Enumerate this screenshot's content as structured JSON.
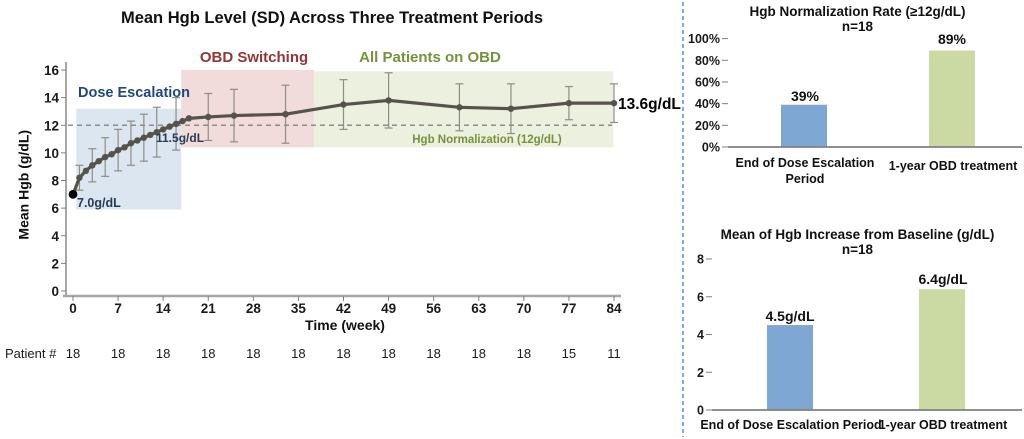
{
  "figure": {
    "background": "#ffffff",
    "divider_color": "#5b9bd5",
    "accent_colors": {
      "bar_blue": "#7ea7d4",
      "bar_green": "#cbdaa2",
      "line_gray": "#55534b"
    }
  },
  "chart_data": [
    {
      "id": "hgb-line-chart",
      "type": "line",
      "title": "Mean Hgb Level (SD) Across Three Treatment Periods",
      "xlabel": "Time (week)",
      "ylabel": "Mean Hgb (g/dL)",
      "xlim": [
        0,
        84
      ],
      "ylim": [
        0,
        16
      ],
      "grid": false,
      "x_ticks": [
        0,
        7,
        14,
        21,
        28,
        35,
        42,
        49,
        56,
        63,
        70,
        77,
        84
      ],
      "y_ticks": [
        0,
        2,
        4,
        6,
        8,
        10,
        12,
        14,
        16
      ],
      "reference_line": {
        "y": 12,
        "style": "dashed",
        "color": "#8c8c8c",
        "label": "Hgb Normalization (12g/dL)",
        "label_color": "#76923c"
      },
      "regions": [
        {
          "label": "Dose Escalation",
          "label_color": "#1f497d",
          "fill": "#dce6f1",
          "x0": 0.5,
          "x1": 16.8,
          "y0": 5.9,
          "y1": 13.2
        },
        {
          "label": "OBD Switching",
          "label_color": "#943634",
          "fill": "#f2dcdb",
          "x0": 16.8,
          "x1": 37.4,
          "y0": 10.4,
          "y1": 16.0
        },
        {
          "label": "All Patients on OBD",
          "label_color": "#76923c",
          "fill": "#ebf1de",
          "x0": 37.4,
          "x1": 83.9,
          "y0": 10.4,
          "y1": 15.9
        }
      ],
      "series": [
        {
          "name": "Mean Hgb (SD)",
          "color": "#55534b",
          "error_bar_color": "#8f8d84",
          "points_format": [
            "week",
            "mean_hgb",
            "sd"
          ],
          "points": [
            [
              0,
              7.0,
              null
            ],
            [
              1,
              8.2,
              0.9
            ],
            [
              2,
              8.7,
              null
            ],
            [
              3,
              9.1,
              1.2
            ],
            [
              4,
              9.4,
              null
            ],
            [
              5,
              9.7,
              1.4
            ],
            [
              6,
              9.9,
              null
            ],
            [
              7,
              10.2,
              1.5
            ],
            [
              8,
              10.4,
              null
            ],
            [
              9,
              10.7,
              1.6
            ],
            [
              10,
              10.9,
              null
            ],
            [
              11,
              11.1,
              1.7
            ],
            [
              12,
              11.3,
              null
            ],
            [
              13,
              11.5,
              1.8
            ],
            [
              14,
              11.7,
              null
            ],
            [
              15,
              11.9,
              null
            ],
            [
              16,
              12.1,
              1.9
            ],
            [
              17,
              12.3,
              null
            ],
            [
              18,
              12.5,
              null
            ],
            [
              21,
              12.6,
              1.7
            ],
            [
              25,
              12.7,
              1.9
            ],
            [
              33,
              12.8,
              2.1
            ],
            [
              42,
              13.5,
              1.8
            ],
            [
              49,
              13.8,
              2.0
            ],
            [
              60,
              13.3,
              1.7
            ],
            [
              68,
              13.2,
              1.8
            ],
            [
              77,
              13.6,
              1.2
            ],
            [
              84,
              13.6,
              1.4
            ]
          ]
        }
      ],
      "annotations": [
        {
          "text": "7.0g/dL",
          "x": 1,
          "y": 6.5,
          "color": "#263c55"
        },
        {
          "text": "11.5g/dL",
          "x": 14,
          "y": 11.2,
          "color": "#263c55"
        },
        {
          "text": "13.6g/dL",
          "x": 85,
          "y": 13.6,
          "color": "#000000"
        }
      ],
      "patient_counts": {
        "label": "Patient #",
        "weeks": [
          0,
          7,
          14,
          21,
          28,
          35,
          42,
          49,
          56,
          63,
          70,
          77,
          84
        ],
        "values": [
          "18",
          "18",
          "18",
          "18",
          "18",
          "18",
          "18",
          "18",
          "18",
          "18",
          "18",
          "15",
          "11"
        ]
      }
    },
    {
      "id": "normalization-rate-chart",
      "type": "bar",
      "title": "Hgb Normalization Rate (≥12g/dL)",
      "subtitle": "n=18",
      "categories": [
        "End of Dose Escalation Period",
        "1-year OBD treatment"
      ],
      "values": [
        39,
        89
      ],
      "value_labels": [
        "39%",
        "89%"
      ],
      "colors": [
        "#7ea7d4",
        "#cbdaa2"
      ],
      "ylim": [
        0,
        100
      ],
      "y_tick_labels": [
        "0%",
        "20%",
        "40%",
        "60%",
        "80%",
        "100%"
      ],
      "grid": false,
      "legend_position": "none"
    },
    {
      "id": "hgb-increase-chart",
      "type": "bar",
      "title": "Mean of Hgb Increase from Baseline (g/dL)",
      "subtitle": "n=18",
      "categories": [
        "End of Dose Escalation Period",
        "1-year OBD treatment"
      ],
      "values": [
        4.5,
        6.4
      ],
      "value_labels": [
        "4.5g/dL",
        "6.4g/dL"
      ],
      "colors": [
        "#7ea7d4",
        "#cbdaa2"
      ],
      "ylim": [
        0,
        8
      ],
      "y_tick_labels": [
        "0",
        "2",
        "4",
        "6",
        "8"
      ],
      "grid": false,
      "legend_position": "none"
    }
  ]
}
